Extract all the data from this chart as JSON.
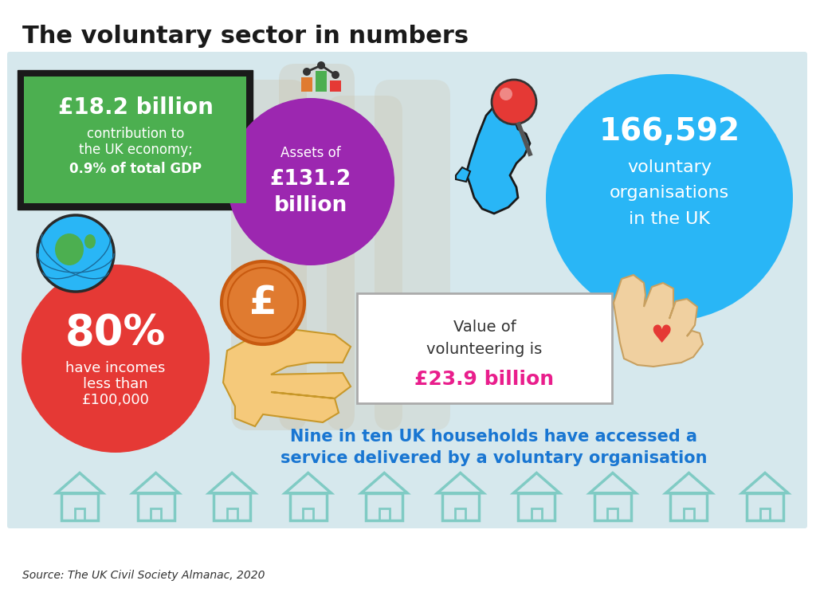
{
  "title": "The voluntary sector in numbers",
  "source": "Source: The UK Civil Society Almanac, 2020",
  "bg_color": "#d6e8ed",
  "outer_bg": "#ffffff",
  "box1_bg": "#4caf50",
  "box1_border": "#1a1a1a",
  "box1_text_big": "£18.2 billion",
  "box1_text_small1": "contribution to",
  "box1_text_small2": "the UK economy;",
  "box1_text_small3": "0.9% of total GDP",
  "circle_assets_bg": "#9c27b0",
  "circle_assets_text1": "Assets of",
  "circle_assets_text2": "£131.2",
  "circle_assets_text3": "billion",
  "circle_orgs_bg": "#29b6f6",
  "circle_orgs_num": "166,592",
  "circle_orgs_text1": "voluntary",
  "circle_orgs_text2": "organisations",
  "circle_orgs_text3": "in the UK",
  "circle_80_bg": "#e53935",
  "circle_80_text_big": "80%",
  "circle_80_text1": "have incomes",
  "circle_80_text2": "less than",
  "circle_80_text3": "£100,000",
  "box_vol_text1": "Value of",
  "box_vol_text2": "volunteering is",
  "box_vol_val": "£23.9 billion",
  "box_vol_val_color": "#e91e8c",
  "nine_in_ten_line1": "Nine in ten UK households have accessed a",
  "nine_in_ten_line2": "service delivered by a voluntary organisation",
  "nine_in_ten_color": "#1976d2",
  "house_color": "#80cbc4",
  "coin_color": "#e07b30",
  "hand_color": "#f5c97a",
  "globe_blue": "#29b6f6",
  "globe_green": "#4caf50",
  "uk_map_color": "#29b6f6",
  "pin_red": "#e53935",
  "pin_gray": "#888888"
}
